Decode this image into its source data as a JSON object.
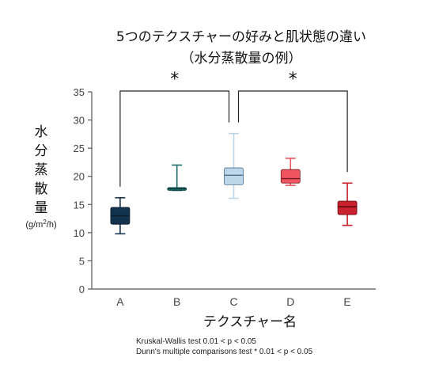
{
  "chart_data": {
    "type": "box",
    "title": "5つのテクスチャーの好みと肌状態の違い",
    "subtitle": "（水分蒸散量の例）",
    "xlabel": "テクスチャー名",
    "ylabel": "水分蒸散量",
    "yunit_prefix": "(g/m",
    "yunit_sup": "2",
    "yunit_suffix": "/h)",
    "ylim": [
      0,
      35
    ],
    "yticks": [
      0,
      5,
      10,
      15,
      20,
      25,
      30,
      35
    ],
    "grid": false,
    "categories": [
      "A",
      "B",
      "C",
      "D",
      "E"
    ],
    "boxes": [
      {
        "category": "A",
        "min": 9.8,
        "q1": 11.5,
        "median": 13.0,
        "q3": 14.5,
        "max": 16.2,
        "color": "#12324e",
        "median_color": "#0a1a2a"
      },
      {
        "category": "B",
        "min": 17.5,
        "q1": 17.5,
        "median": 17.8,
        "q3": 18.0,
        "max": 22.0,
        "color": "#1f6b6b",
        "median_color": "#0e3f3f"
      },
      {
        "category": "C",
        "min": 16.1,
        "q1": 18.5,
        "median": 20.2,
        "q3": 21.5,
        "max": 27.6,
        "color": "#bcd6ea",
        "median_color": "#4a6e8c"
      },
      {
        "category": "D",
        "min": 18.4,
        "q1": 18.8,
        "median": 19.6,
        "q3": 21.2,
        "max": 23.2,
        "color": "#ee5560",
        "median_color": "#7a1a20"
      },
      {
        "category": "E",
        "min": 11.3,
        "q1": 13.2,
        "median": 14.6,
        "q3": 15.6,
        "max": 18.8,
        "color": "#c8222e",
        "median_color": "#5e0a10"
      }
    ],
    "significance": [
      {
        "from": "A",
        "to": "C",
        "label": "*"
      },
      {
        "from": "C",
        "to": "E",
        "label": "*"
      }
    ],
    "notes": [
      "Kruskal-Wallis test 0.01 < p < 0.05",
      "Dunn's multiple comparisons test * 0.01 < p < 0.05"
    ]
  }
}
